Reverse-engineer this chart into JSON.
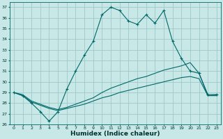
{
  "xlabel": "Humidex (Indice chaleur)",
  "bg_color": "#c8e8e8",
  "grid_color": "#a0c8c8",
  "line_color": "#006868",
  "ylim": [
    26,
    37.5
  ],
  "xlim": [
    -0.5,
    23.5
  ],
  "yticks": [
    26,
    27,
    28,
    29,
    30,
    31,
    32,
    33,
    34,
    35,
    36,
    37
  ],
  "xticks": [
    0,
    1,
    2,
    3,
    4,
    5,
    6,
    7,
    8,
    9,
    10,
    11,
    12,
    13,
    14,
    15,
    16,
    17,
    18,
    19,
    20,
    21,
    22,
    23
  ],
  "line1_x": [
    0,
    1,
    2,
    3,
    4,
    5,
    6,
    7,
    8,
    9,
    10,
    11,
    12,
    13,
    14,
    15,
    16,
    17,
    18,
    19,
    20,
    21,
    22,
    23
  ],
  "line1_y": [
    29.0,
    28.7,
    28.0,
    27.2,
    26.3,
    27.2,
    29.3,
    31.0,
    32.5,
    33.8,
    36.3,
    37.0,
    36.7,
    35.7,
    35.4,
    36.3,
    35.5,
    36.7,
    33.8,
    32.2,
    31.0,
    30.8,
    28.8,
    28.8
  ],
  "line2_x": [
    0,
    1,
    2,
    3,
    4,
    5,
    6,
    7,
    8,
    9,
    10,
    11,
    12,
    13,
    14,
    15,
    16,
    17,
    18,
    19,
    20,
    21,
    22,
    23
  ],
  "line2_y": [
    29.0,
    28.8,
    28.2,
    27.9,
    27.6,
    27.4,
    27.6,
    27.9,
    28.2,
    28.5,
    29.0,
    29.4,
    29.7,
    30.0,
    30.3,
    30.5,
    30.8,
    31.1,
    31.3,
    31.5,
    31.8,
    30.8,
    28.7,
    28.8
  ],
  "line3_x": [
    0,
    1,
    2,
    3,
    4,
    5,
    6,
    7,
    8,
    9,
    10,
    11,
    12,
    13,
    14,
    15,
    16,
    17,
    18,
    19,
    20,
    21,
    22,
    23
  ],
  "line3_y": [
    29.0,
    28.7,
    28.1,
    27.8,
    27.5,
    27.3,
    27.5,
    27.7,
    27.9,
    28.2,
    28.5,
    28.7,
    29.0,
    29.2,
    29.4,
    29.6,
    29.8,
    30.0,
    30.2,
    30.4,
    30.5,
    30.3,
    28.7,
    28.7
  ]
}
